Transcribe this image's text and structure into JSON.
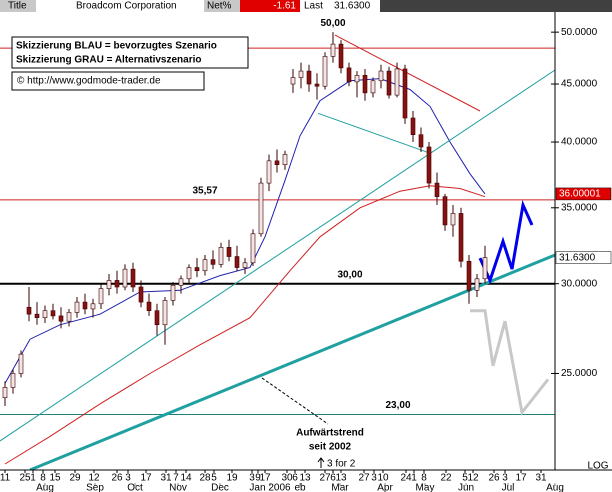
{
  "header": {
    "title": "Title",
    "name": "Broadcom Corporation",
    "net_label": "Net%",
    "net_value": "-1.61",
    "last_label": "Last",
    "last_value": "31.6300"
  },
  "legend_box": [
    "Skizzierung BLAU = bevorzugtes Szenario",
    "Skizzierung GRAU = Alternativszenario",
    "© http://www.godmode-trader.de"
  ],
  "chart_data": {
    "type": "candlestick",
    "x": [
      1,
      5,
      9,
      13,
      17,
      21,
      25,
      29,
      33,
      37,
      41,
      45,
      49,
      53,
      57,
      61,
      65,
      69,
      73,
      77,
      81,
      85,
      89,
      93,
      97,
      101,
      105,
      109,
      113,
      117,
      121,
      125,
      129,
      133,
      137,
      141,
      145,
      149,
      153,
      157,
      161,
      165,
      169,
      173,
      177,
      181,
      185,
      189,
      193,
      197,
      201,
      205,
      209,
      213,
      217,
      221,
      225,
      229,
      233,
      237,
      241
    ],
    "open": [
      23.8,
      24.3,
      25.0,
      28.6,
      28.2,
      28.0,
      28.4,
      28.1,
      27.8,
      28.3,
      28.9,
      28.5,
      28.8,
      29.7,
      30.2,
      29.8,
      30.9,
      29.8,
      28.9,
      28.4,
      27.6,
      29.0,
      29.9,
      30.3,
      31.0,
      30.8,
      31.5,
      31.2,
      32.3,
      31.7,
      31.0,
      31.3,
      33.2,
      36.8,
      38.5,
      38.2,
      45.0,
      45.6,
      46.2,
      45.0,
      44.8,
      47.6,
      48.8,
      46.5,
      45.2,
      45.8,
      44.2,
      45.3,
      46.2,
      44.0,
      46.4,
      42.0,
      40.6,
      39.6,
      36.8,
      35.8,
      33.8,
      34.6,
      31.4,
      29.6,
      30.3
    ],
    "high": [
      24.6,
      25.2,
      26.2,
      29.8,
      28.9,
      28.7,
      28.8,
      28.6,
      28.5,
      29.2,
      29.4,
      29.1,
      30.0,
      30.6,
      30.8,
      31.2,
      31.3,
      30.2,
      29.4,
      28.8,
      29.2,
      30.1,
      30.5,
      31.2,
      31.6,
      31.8,
      32.1,
      32.6,
      32.8,
      32.4,
      31.6,
      33.5,
      37.2,
      39.0,
      39.4,
      39.3,
      46.4,
      47.0,
      46.8,
      46.0,
      48.0,
      50.0,
      49.2,
      47.0,
      46.2,
      46.4,
      45.6,
      46.8,
      46.6,
      47.0,
      46.8,
      42.6,
      41.2,
      40.0,
      37.6,
      36.0,
      35.2,
      35.0,
      31.8,
      30.6,
      32.4
    ],
    "low": [
      23.4,
      24.0,
      24.8,
      27.8,
      27.6,
      27.7,
      27.9,
      27.4,
      27.5,
      28.0,
      28.2,
      28.0,
      28.5,
      29.3,
      29.4,
      29.6,
      29.5,
      28.6,
      28.1,
      27.0,
      26.5,
      28.7,
      29.4,
      30.0,
      30.4,
      30.5,
      30.9,
      31.0,
      31.4,
      30.8,
      30.6,
      31.1,
      33.0,
      36.2,
      37.6,
      37.8,
      44.2,
      44.6,
      44.3,
      43.6,
      44.5,
      47.0,
      46.0,
      44.8,
      43.8,
      43.5,
      43.8,
      44.6,
      43.7,
      43.8,
      41.5,
      40.0,
      39.2,
      36.4,
      35.2,
      33.4,
      33.0,
      31.0,
      28.8,
      29.2,
      30.0
    ],
    "close": [
      24.3,
      25.0,
      26.0,
      28.2,
      28.0,
      28.4,
      28.1,
      27.8,
      28.3,
      28.9,
      28.5,
      28.8,
      29.7,
      30.2,
      29.8,
      30.9,
      29.8,
      28.9,
      28.4,
      27.6,
      29.0,
      29.9,
      30.3,
      31.0,
      30.8,
      31.5,
      31.2,
      32.3,
      31.7,
      31.0,
      31.3,
      33.2,
      36.8,
      38.5,
      38.2,
      39.0,
      45.6,
      46.2,
      45.0,
      44.8,
      47.6,
      48.8,
      46.5,
      45.2,
      45.8,
      44.2,
      45.3,
      46.2,
      44.0,
      46.4,
      42.0,
      40.6,
      39.6,
      36.8,
      35.8,
      33.8,
      34.6,
      31.4,
      29.6,
      30.3,
      31.63
    ],
    "up_color": "#f4e4e4",
    "down_color": "#8b1010",
    "wick_color": "#3a0000",
    "overlays": [
      {
        "color": "#2020b0",
        "x": [
          1,
          13.5,
          28.5,
          48.5,
          68.5,
          88.5,
          108.5,
          123.5,
          131,
          141,
          148.5,
          158.5,
          173.5,
          188.5,
          203.5,
          213.5,
          223.5,
          233.5,
          241
        ],
        "values": [
          24.5,
          26.8,
          27.6,
          28.2,
          29.5,
          29.6,
          30.5,
          31.0,
          33,
          37,
          40.5,
          43.5,
          45.3,
          45.5,
          44.5,
          43,
          40,
          37.5,
          36
        ]
      },
      {
        "color": "#d02020",
        "x": [
          1,
          23.5,
          48.5,
          73.5,
          98.5,
          123.5,
          143.5,
          158.5,
          178.5,
          198.5,
          213.5,
          228.5,
          241
        ],
        "values": [
          20.8,
          22,
          23.5,
          25,
          26.5,
          28,
          30.8,
          33,
          35,
          36.2,
          36.6,
          36.4,
          35.8
        ]
      },
      {
        "color": "#20a0a0",
        "emphasis": true,
        "x": [
          13.5,
          276
        ],
        "values": [
          20.55,
          31.8
        ]
      },
      {
        "color": "#20a0a0",
        "x": [
          -1.5,
          276
        ],
        "values": [
          21.8,
          46.3
        ]
      },
      {
        "color": "#d02020",
        "x": [
          166,
          238.5
        ],
        "values": [
          49.7,
          42.6
        ]
      },
      {
        "color": "#20a0a0",
        "x": [
          157.5,
          213.5
        ],
        "values": [
          42.4,
          39.1
        ]
      },
      {
        "color": "#0000ee",
        "emphasis": true,
        "x": [
          238.5,
          243.5,
          250,
          254.5,
          260,
          264.5
        ],
        "values": [
          31.6,
          30.2,
          32.7,
          30.9,
          35.2,
          33.8
        ]
      },
      {
        "color": "#c8c8c8",
        "emphasis": true,
        "x": [
          233.5,
          241,
          245,
          251,
          259.5,
          272.5
        ],
        "values": [
          28.4,
          28.4,
          25.4,
          27.8,
          23.1,
          24.7
        ]
      }
    ],
    "levels": [
      {
        "value": 48.4,
        "color": "#d02020"
      },
      {
        "value": 35.57,
        "color": "#d02020",
        "label": "35,57"
      },
      {
        "value": 30,
        "color": "#000000",
        "label": "30,00",
        "emphasis": true
      },
      {
        "value": 23,
        "color": "#208080",
        "label": "23,00"
      }
    ],
    "peak": {
      "text": "50,00",
      "x": 165,
      "value": 50
    },
    "price_markers": [
      {
        "value": 36.00001,
        "label": "36.00001",
        "color": "#e00000"
      },
      {
        "value": 31.63,
        "label": "31.6300",
        "color": "#ffffff"
      }
    ],
    "trend_note": [
      "Aufwärtstrend",
      "seit 2002"
    ],
    "split_note": "3 for 2",
    "scale_label": "LOG",
    "log_scale": true,
    "ylim": [
      20.55,
      52.3
    ],
    "yticks": [
      {
        "value": 25,
        "label": "25.0000"
      },
      {
        "value": 30,
        "label": "30.0000"
      },
      {
        "value": 35,
        "label": "35.0000"
      },
      {
        "value": 40,
        "label": "40.0000"
      },
      {
        "value": 45,
        "label": "45.0000"
      },
      {
        "value": 50,
        "label": "50.0000"
      }
    ],
    "xlim": [
      -1.5,
      276
    ],
    "xticks": [
      {
        "value": 1,
        "label": "11"
      },
      {
        "value": 11,
        "label": "25"
      },
      {
        "value": 15,
        "label": "1"
      },
      {
        "value": 20,
        "label": "8"
      },
      {
        "value": 26,
        "label": "15"
      },
      {
        "value": 36,
        "label": "29"
      },
      {
        "value": 45.5,
        "label": "12"
      },
      {
        "value": 57,
        "label": "26"
      },
      {
        "value": 62.5,
        "label": "3"
      },
      {
        "value": 71.5,
        "label": "17"
      },
      {
        "value": 81.5,
        "label": "31"
      },
      {
        "value": 86.5,
        "label": "7"
      },
      {
        "value": 91.5,
        "label": "14"
      },
      {
        "value": 101,
        "label": "28"
      },
      {
        "value": 105.5,
        "label": "5"
      },
      {
        "value": 114.5,
        "label": "19"
      },
      {
        "value": 124.5,
        "label": "3"
      },
      {
        "value": 127.5,
        "label": "9"
      },
      {
        "value": 131,
        "label": "17"
      },
      {
        "value": 142,
        "label": "30"
      },
      {
        "value": 146,
        "label": "6"
      },
      {
        "value": 151,
        "label": "13"
      },
      {
        "value": 161,
        "label": "27"
      },
      {
        "value": 165,
        "label": "6"
      },
      {
        "value": 169,
        "label": "13"
      },
      {
        "value": 180.5,
        "label": "27"
      },
      {
        "value": 185.5,
        "label": "3"
      },
      {
        "value": 190,
        "label": "10"
      },
      {
        "value": 201.5,
        "label": "24"
      },
      {
        "value": 205.5,
        "label": "1"
      },
      {
        "value": 210.5,
        "label": "8"
      },
      {
        "value": 221.5,
        "label": "22"
      },
      {
        "value": 231,
        "label": "5"
      },
      {
        "value": 235,
        "label": "12"
      },
      {
        "value": 245.5,
        "label": "26"
      },
      {
        "value": 251,
        "label": "3"
      },
      {
        "value": 259,
        "label": "17"
      },
      {
        "value": 269,
        "label": "31"
      }
    ],
    "month_ticks": [
      {
        "value": 21,
        "label": "Aug"
      },
      {
        "value": 46,
        "label": "Sep"
      },
      {
        "value": 66,
        "label": "Oct"
      },
      {
        "value": 87.5,
        "label": "Nov"
      },
      {
        "value": 108.5,
        "label": "Dec"
      },
      {
        "value": 133.5,
        "label": "Jan 2006"
      },
      {
        "value": 148.5,
        "label": "eb"
      },
      {
        "value": 168.5,
        "label": "Mar"
      },
      {
        "value": 191,
        "label": "Apr"
      },
      {
        "value": 211,
        "label": "May"
      },
      {
        "value": 231.5,
        "label": "Jun"
      },
      {
        "value": 252.5,
        "label": "Jul"
      },
      {
        "value": 276,
        "label": "Aug"
      }
    ]
  }
}
